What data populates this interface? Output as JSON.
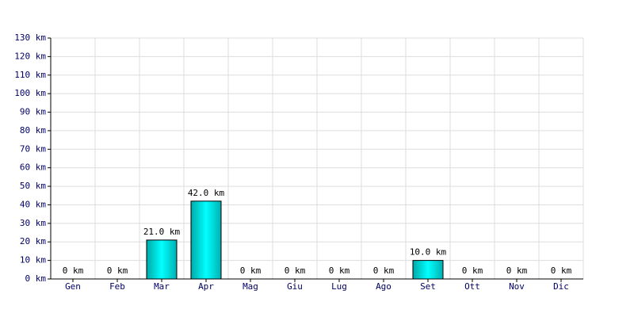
{
  "chart_data": {
    "type": "bar",
    "categories": [
      "Gen",
      "Feb",
      "Mar",
      "Apr",
      "Mag",
      "Giu",
      "Lug",
      "Ago",
      "Set",
      "Ott",
      "Nov",
      "Dic"
    ],
    "values": [
      0,
      0,
      21.0,
      42.0,
      0,
      0,
      0,
      0,
      10.0,
      0,
      0,
      0
    ],
    "value_labels": [
      "0 km",
      "0 km",
      "21.0 km",
      "42.0 km",
      "0 km",
      "0 km",
      "0 km",
      "0 km",
      "10.0 km",
      "0 km",
      "0 km",
      "0 km"
    ],
    "color": "#00cccc",
    "ylim": [
      0,
      130
    ],
    "yticks": [
      {
        "value": 0,
        "label": "0 km"
      },
      {
        "value": 10,
        "label": "10 km"
      },
      {
        "value": 20,
        "label": "20 km"
      },
      {
        "value": 30,
        "label": "30 km"
      },
      {
        "value": 40,
        "label": "40 km"
      },
      {
        "value": 50,
        "label": "50 km"
      },
      {
        "value": 60,
        "label": "60 km"
      },
      {
        "value": 70,
        "label": "70 km"
      },
      {
        "value": 80,
        "label": "80 km"
      },
      {
        "value": 90,
        "label": "90 km"
      },
      {
        "value": 100,
        "label": "100 km"
      },
      {
        "value": 110,
        "label": "110 km"
      },
      {
        "value": 120,
        "label": "120 km"
      },
      {
        "value": 130,
        "label": "130 km"
      }
    ],
    "grid": true
  }
}
